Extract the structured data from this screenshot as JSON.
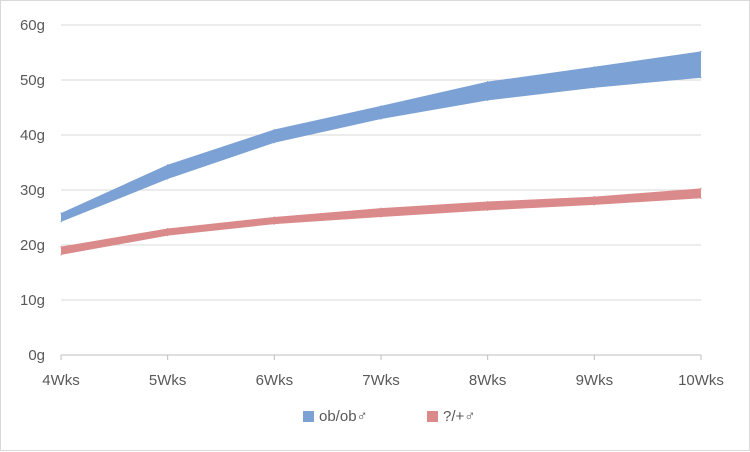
{
  "chart_data": {
    "type": "area",
    "categories": [
      "4Wks",
      "5Wks",
      "6Wks",
      "7Wks",
      "8Wks",
      "9Wks",
      "10Wks"
    ],
    "ylim": [
      0,
      60
    ],
    "yticks": [
      0,
      10,
      20,
      30,
      40,
      50,
      60
    ],
    "ytick_unit": "g",
    "grid": "horizontal",
    "legend_position": "bottom",
    "series": [
      {
        "name": "ob/ob♂",
        "color": "#7ca1d4",
        "lower": [
          24.2,
          32.0,
          38.6,
          42.9,
          46.3,
          48.6,
          50.4
        ],
        "upper": [
          25.8,
          34.6,
          41.0,
          45.3,
          49.7,
          52.4,
          55.2
        ]
      },
      {
        "name": "?/+♂",
        "color": "#da8a8a",
        "lower": [
          18.2,
          21.7,
          23.8,
          25.1,
          26.3,
          27.3,
          28.5
        ],
        "upper": [
          19.7,
          23.0,
          25.1,
          26.7,
          27.9,
          28.8,
          30.3
        ]
      }
    ]
  }
}
